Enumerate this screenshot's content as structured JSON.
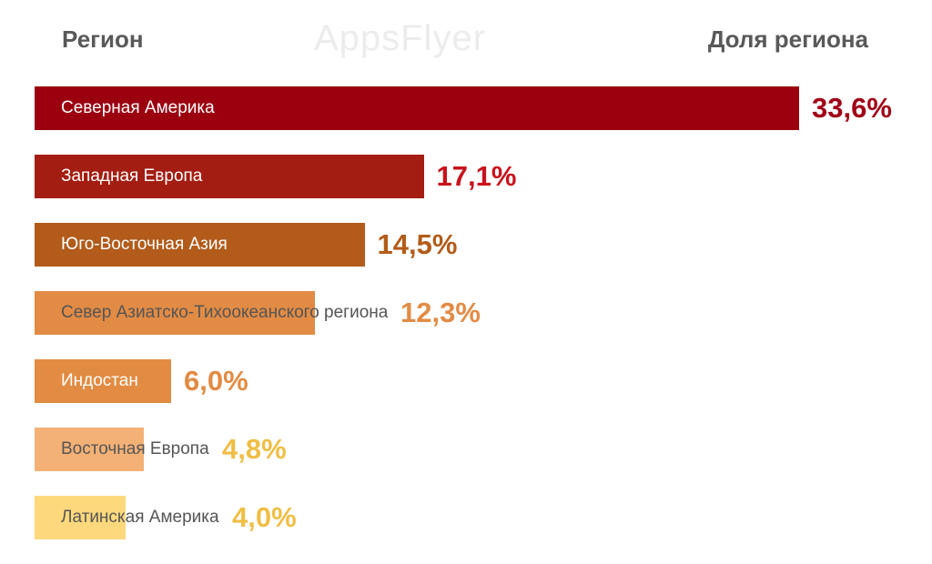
{
  "chart_data": {
    "type": "bar",
    "orientation": "horizontal",
    "watermark": "AppsFlyer",
    "category_header": "Регион",
    "value_header": "Доля региона",
    "categories": [
      "Северная Америка",
      "Западная Европа",
      "Юго-Восточная Азия",
      "Север Азиатско-Тихоокеанского региона",
      "Индостан",
      "Восточная Европа",
      "Латинская Америка"
    ],
    "values": [
      33.6,
      17.1,
      14.5,
      12.3,
      6.0,
      4.8,
      4.0
    ],
    "value_labels": [
      "33,6%",
      "17,1%",
      "14,5%",
      "12,3%",
      "6,0%",
      "4,8%",
      "4,0%"
    ],
    "colors": [
      "#9b000f",
      "#a41d12",
      "#b25b1b",
      "#e28b45",
      "#e28b42",
      "#f4b176",
      "#fdd87c"
    ],
    "label_colors": [
      "#a10016",
      "#c9121d",
      "#b35c1a",
      "#e28b45",
      "#e28b42",
      "#efbe45",
      "#efbe45"
    ]
  }
}
